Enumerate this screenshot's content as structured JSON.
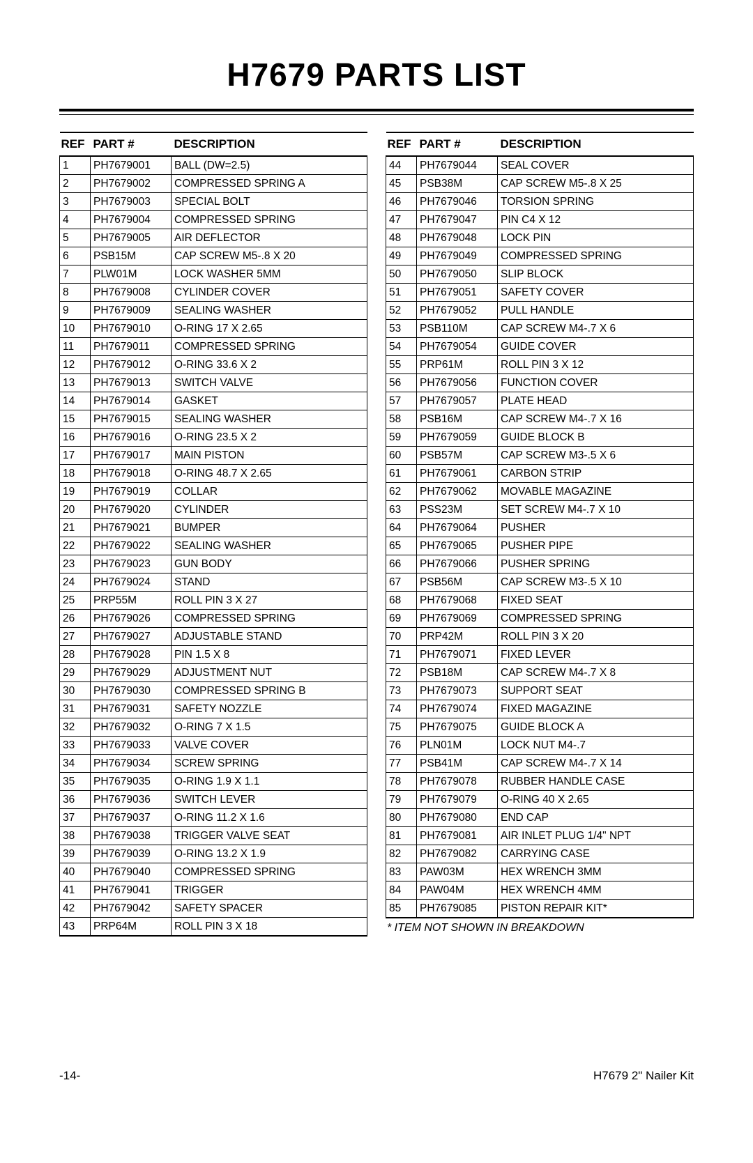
{
  "title": "H7679 PARTS LIST",
  "headers": {
    "ref": "REF",
    "part": "PART #",
    "desc": "DESCRIPTION"
  },
  "footnote": "* ITEM NOT SHOWN IN BREAKDOWN",
  "footer": {
    "left": "-14-",
    "right": "H7679 2\" Nailer Kit"
  },
  "left_rows": [
    {
      "ref": "1",
      "part": "PH7679001",
      "desc": "BALL (DW=2.5)"
    },
    {
      "ref": "2",
      "part": "PH7679002",
      "desc": "COMPRESSED SPRING A"
    },
    {
      "ref": "3",
      "part": "PH7679003",
      "desc": "SPECIAL BOLT"
    },
    {
      "ref": "4",
      "part": "PH7679004",
      "desc": "COMPRESSED SPRING"
    },
    {
      "ref": "5",
      "part": "PH7679005",
      "desc": "AIR DEFLECTOR"
    },
    {
      "ref": "6",
      "part": "PSB15M",
      "desc": "CAP SCREW M5-.8 X 20"
    },
    {
      "ref": "7",
      "part": "PLW01M",
      "desc": "LOCK WASHER 5MM"
    },
    {
      "ref": "8",
      "part": "PH7679008",
      "desc": "CYLINDER COVER"
    },
    {
      "ref": "9",
      "part": "PH7679009",
      "desc": "SEALING WASHER"
    },
    {
      "ref": "10",
      "part": "PH7679010",
      "desc": "O-RING 17 X 2.65"
    },
    {
      "ref": "11",
      "part": "PH7679011",
      "desc": "COMPRESSED SPRING"
    },
    {
      "ref": "12",
      "part": "PH7679012",
      "desc": "O-RING 33.6 X 2"
    },
    {
      "ref": "13",
      "part": "PH7679013",
      "desc": "SWITCH VALVE"
    },
    {
      "ref": "14",
      "part": "PH7679014",
      "desc": "GASKET"
    },
    {
      "ref": "15",
      "part": "PH7679015",
      "desc": "SEALING WASHER"
    },
    {
      "ref": "16",
      "part": "PH7679016",
      "desc": "O-RING 23.5 X 2"
    },
    {
      "ref": "17",
      "part": "PH7679017",
      "desc": "MAIN PISTON"
    },
    {
      "ref": "18",
      "part": "PH7679018",
      "desc": "O-RING 48.7 X 2.65"
    },
    {
      "ref": "19",
      "part": "PH7679019",
      "desc": "COLLAR"
    },
    {
      "ref": "20",
      "part": "PH7679020",
      "desc": "CYLINDER"
    },
    {
      "ref": "21",
      "part": "PH7679021",
      "desc": "BUMPER"
    },
    {
      "ref": "22",
      "part": "PH7679022",
      "desc": "SEALING WASHER"
    },
    {
      "ref": "23",
      "part": "PH7679023",
      "desc": "GUN BODY"
    },
    {
      "ref": "24",
      "part": "PH7679024",
      "desc": "STAND"
    },
    {
      "ref": "25",
      "part": "PRP55M",
      "desc": "ROLL PIN 3 X 27"
    },
    {
      "ref": "26",
      "part": "PH7679026",
      "desc": "COMPRESSED SPRING"
    },
    {
      "ref": "27",
      "part": "PH7679027",
      "desc": "ADJUSTABLE STAND"
    },
    {
      "ref": "28",
      "part": "PH7679028",
      "desc": "PIN 1.5 X 8"
    },
    {
      "ref": "29",
      "part": "PH7679029",
      "desc": "ADJUSTMENT NUT"
    },
    {
      "ref": "30",
      "part": "PH7679030",
      "desc": "COMPRESSED SPRING B"
    },
    {
      "ref": "31",
      "part": "PH7679031",
      "desc": "SAFETY NOZZLE"
    },
    {
      "ref": "32",
      "part": "PH7679032",
      "desc": "O-RING 7 X 1.5"
    },
    {
      "ref": "33",
      "part": "PH7679033",
      "desc": "VALVE COVER"
    },
    {
      "ref": "34",
      "part": "PH7679034",
      "desc": "SCREW SPRING"
    },
    {
      "ref": "35",
      "part": "PH7679035",
      "desc": "O-RING 1.9 X 1.1"
    },
    {
      "ref": "36",
      "part": "PH7679036",
      "desc": "SWITCH LEVER"
    },
    {
      "ref": "37",
      "part": "PH7679037",
      "desc": "O-RING 11.2 X 1.6"
    },
    {
      "ref": "38",
      "part": "PH7679038",
      "desc": "TRIGGER VALVE SEAT"
    },
    {
      "ref": "39",
      "part": "PH7679039",
      "desc": "O-RING 13.2 X 1.9"
    },
    {
      "ref": "40",
      "part": "PH7679040",
      "desc": "COMPRESSED SPRING"
    },
    {
      "ref": "41",
      "part": "PH7679041",
      "desc": "TRIGGER"
    },
    {
      "ref": "42",
      "part": "PH7679042",
      "desc": "SAFETY SPACER"
    },
    {
      "ref": "43",
      "part": "PRP64M",
      "desc": "ROLL PIN 3 X 18"
    }
  ],
  "right_rows": [
    {
      "ref": "44",
      "part": "PH7679044",
      "desc": "SEAL COVER"
    },
    {
      "ref": "45",
      "part": "PSB38M",
      "desc": "CAP SCREW M5-.8 X 25"
    },
    {
      "ref": "46",
      "part": "PH7679046",
      "desc": "TORSION SPRING"
    },
    {
      "ref": "47",
      "part": "PH7679047",
      "desc": "PIN C4 X 12"
    },
    {
      "ref": "48",
      "part": "PH7679048",
      "desc": "LOCK PIN"
    },
    {
      "ref": "49",
      "part": "PH7679049",
      "desc": "COMPRESSED SPRING"
    },
    {
      "ref": "50",
      "part": "PH7679050",
      "desc": "SLIP BLOCK"
    },
    {
      "ref": "51",
      "part": "PH7679051",
      "desc": "SAFETY COVER"
    },
    {
      "ref": "52",
      "part": "PH7679052",
      "desc": "PULL HANDLE"
    },
    {
      "ref": "53",
      "part": "PSB110M",
      "desc": "CAP SCREW M4-.7 X 6"
    },
    {
      "ref": "54",
      "part": "PH7679054",
      "desc": "GUIDE COVER"
    },
    {
      "ref": "55",
      "part": "PRP61M",
      "desc": "ROLL PIN 3 X 12"
    },
    {
      "ref": "56",
      "part": "PH7679056",
      "desc": "FUNCTION COVER"
    },
    {
      "ref": "57",
      "part": "PH7679057",
      "desc": "PLATE HEAD"
    },
    {
      "ref": "58",
      "part": "PSB16M",
      "desc": "CAP SCREW M4-.7 X 16"
    },
    {
      "ref": "59",
      "part": "PH7679059",
      "desc": "GUIDE BLOCK B"
    },
    {
      "ref": "60",
      "part": "PSB57M",
      "desc": "CAP SCREW M3-.5 X 6"
    },
    {
      "ref": "61",
      "part": "PH7679061",
      "desc": "CARBON STRIP"
    },
    {
      "ref": "62",
      "part": "PH7679062",
      "desc": "MOVABLE MAGAZINE"
    },
    {
      "ref": "63",
      "part": "PSS23M",
      "desc": "SET SCREW M4-.7 X 10"
    },
    {
      "ref": "64",
      "part": "PH7679064",
      "desc": "PUSHER"
    },
    {
      "ref": "65",
      "part": "PH7679065",
      "desc": "PUSHER PIPE"
    },
    {
      "ref": "66",
      "part": "PH7679066",
      "desc": "PUSHER SPRING"
    },
    {
      "ref": "67",
      "part": "PSB56M",
      "desc": "CAP SCREW M3-.5 X 10"
    },
    {
      "ref": "68",
      "part": "PH7679068",
      "desc": "FIXED SEAT"
    },
    {
      "ref": "69",
      "part": "PH7679069",
      "desc": "COMPRESSED SPRING"
    },
    {
      "ref": "70",
      "part": "PRP42M",
      "desc": "ROLL PIN 3 X 20"
    },
    {
      "ref": "71",
      "part": "PH7679071",
      "desc": "FIXED LEVER"
    },
    {
      "ref": "72",
      "part": "PSB18M",
      "desc": "CAP SCREW M4-.7 X 8"
    },
    {
      "ref": "73",
      "part": "PH7679073",
      "desc": "SUPPORT SEAT"
    },
    {
      "ref": "74",
      "part": "PH7679074",
      "desc": "FIXED MAGAZINE"
    },
    {
      "ref": "75",
      "part": "PH7679075",
      "desc": "GUIDE BLOCK A"
    },
    {
      "ref": "76",
      "part": "PLN01M",
      "desc": "LOCK NUT M4-.7"
    },
    {
      "ref": "77",
      "part": "PSB41M",
      "desc": "CAP SCREW M4-.7 X 14"
    },
    {
      "ref": "78",
      "part": "PH7679078",
      "desc": "RUBBER HANDLE CASE"
    },
    {
      "ref": "79",
      "part": "PH7679079",
      "desc": "O-RING 40 X 2.65"
    },
    {
      "ref": "80",
      "part": "PH7679080",
      "desc": "END CAP"
    },
    {
      "ref": "81",
      "part": "PH7679081",
      "desc": "AIR INLET PLUG 1/4\" NPT"
    },
    {
      "ref": "82",
      "part": "PH7679082",
      "desc": "CARRYING CASE"
    },
    {
      "ref": "83",
      "part": "PAW03M",
      "desc": "HEX WRENCH 3MM"
    },
    {
      "ref": "84",
      "part": "PAW04M",
      "desc": "HEX WRENCH 4MM"
    },
    {
      "ref": "85",
      "part": "PH7679085",
      "desc": "PISTON REPAIR KIT*"
    }
  ]
}
